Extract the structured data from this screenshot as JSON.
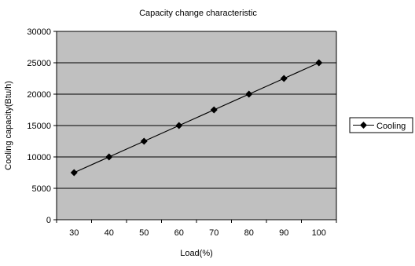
{
  "chart_data": {
    "type": "line",
    "title": "Capacity change characteristic",
    "xlabel": "Load(%)",
    "ylabel": "Cooling capacity(Btu/h)",
    "categories": [
      "30",
      "40",
      "50",
      "60",
      "70",
      "80",
      "90",
      "100"
    ],
    "yticks": [
      "0",
      "5000",
      "10000",
      "15000",
      "20000",
      "25000",
      "30000"
    ],
    "ylim": [
      0,
      30000
    ],
    "grid": true,
    "legend_position": "right",
    "series": [
      {
        "name": "Cooling",
        "values": [
          7500,
          10000,
          12500,
          15000,
          17500,
          20000,
          22500,
          25000
        ],
        "marker": "diamond",
        "color": "#000000"
      }
    ]
  },
  "colors": {
    "plot_background": "#c0c0c0",
    "gridline": "#000000",
    "axis": "#000000"
  }
}
